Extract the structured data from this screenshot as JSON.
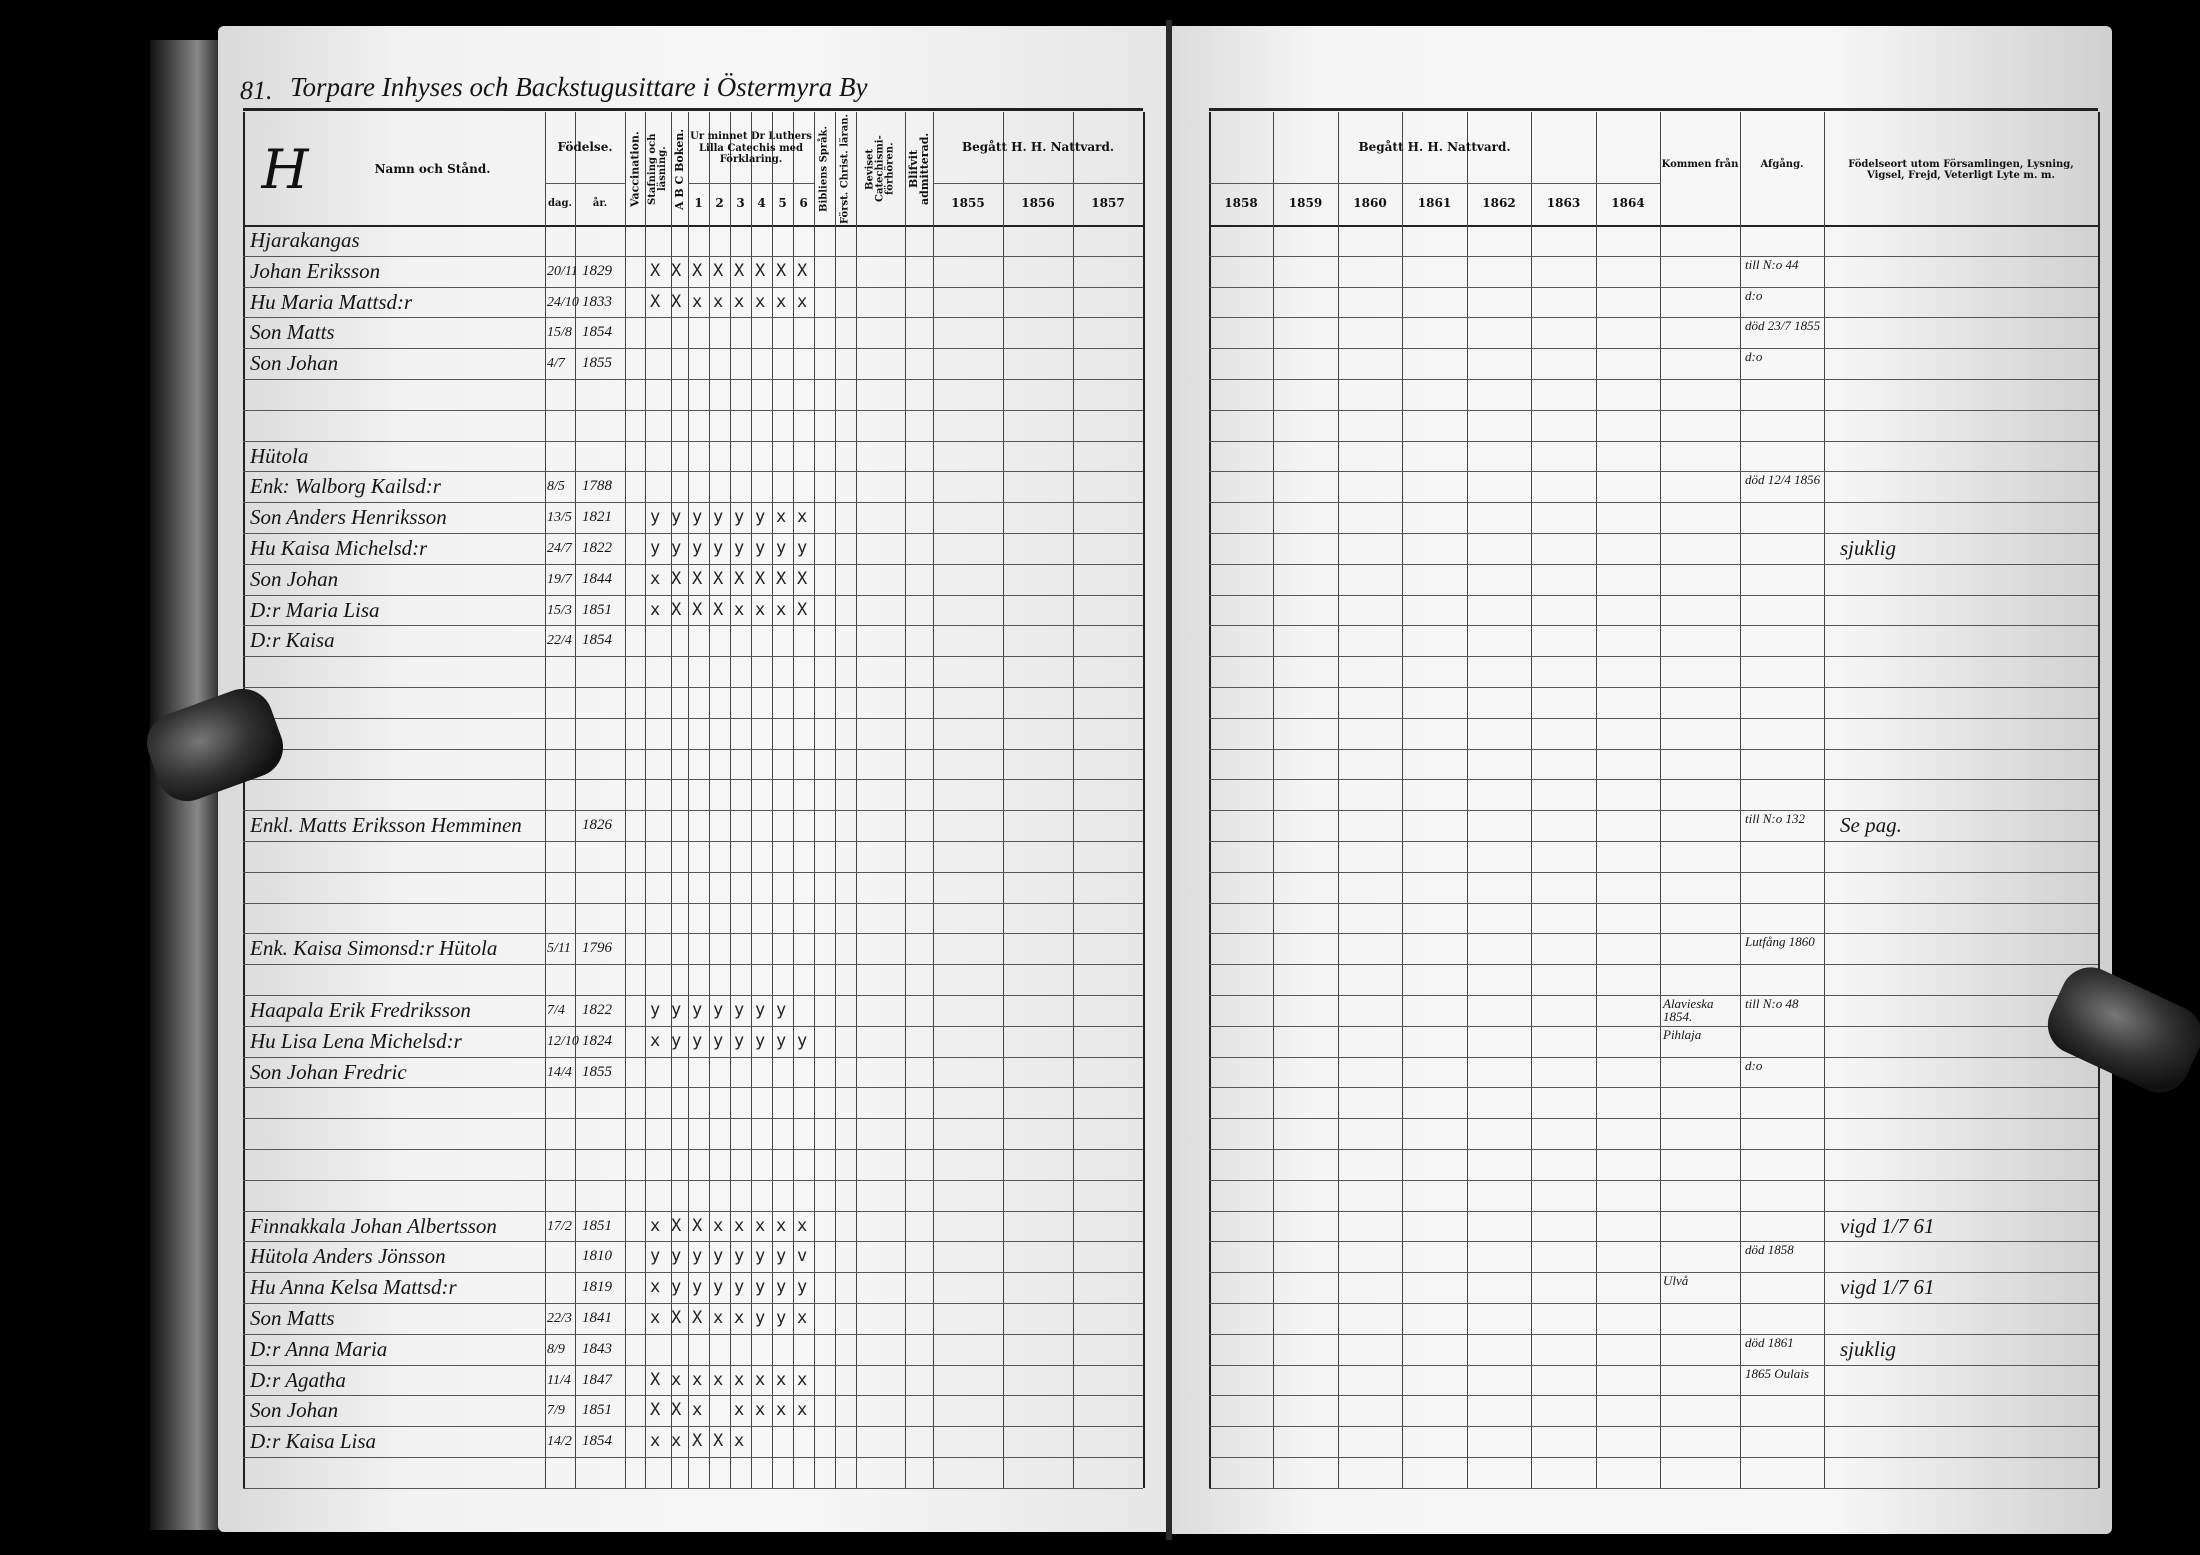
{
  "page_number": "81.",
  "page_heading": "Torpare Inhyses och Backstugusittare i Östermyra By",
  "left_header": {
    "letter": "H",
    "name_col": "Namn och Stånd.",
    "birth": "Födelse.",
    "birth_day": "dag.",
    "birth_year": "år.",
    "vaccination": "Vaccination.",
    "spelling": "Stafning och läsning.",
    "abc": "A B C Boken.",
    "catechism": "Ur minnet Dr Luthers Lilla Catechis med Förklaring.",
    "catechism_parts": [
      "1",
      "2",
      "3",
      "4",
      "5",
      "6"
    ],
    "bible": "Bibliens Språk.",
    "christ": "Först. Christ. läran.",
    "proof": "Beviset Catechismi-förhören.",
    "admitted": "Blifvit admitterad.",
    "communion": "Begått H. H. Nattvard.",
    "years": [
      "1855",
      "1856",
      "1857"
    ]
  },
  "right_header": {
    "communion": "Begått H. H. Nattvard.",
    "years": [
      "1858",
      "1859",
      "1860",
      "1861",
      "1862",
      "1863",
      "1864"
    ],
    "came_from": "Kommen från",
    "departure": "Afgång.",
    "remarks": "Födelseort utom Församlingen, Lysning, Vigsel, Frejd, Veterligt Lyte m. m."
  },
  "entries": [
    {
      "row": 0,
      "name": "Hjarakangas"
    },
    {
      "row": 1,
      "name": "Johan Eriksson",
      "day": "20/11",
      "year": "1829",
      "marks": "XXXXXXXX",
      "departure": "till N:o 44"
    },
    {
      "row": 2,
      "name": "Hu Maria Mattsd:r",
      "day": "24/10",
      "year": "1833",
      "marks": "XXxxxxxx",
      "departure": "d:o"
    },
    {
      "row": 3,
      "name": "Son Matts",
      "day": "15/8",
      "year": "1854",
      "departure": "död 23/7 1855"
    },
    {
      "row": 4,
      "name": "Son Johan",
      "day": "4/7",
      "year": "1855",
      "departure": "d:o"
    },
    {
      "row": 7,
      "name": "Hütola"
    },
    {
      "row": 8,
      "name": "Enk: Walborg Kailsd:r",
      "day": "8/5",
      "year": "1788",
      "departure": "död 12/4 1856"
    },
    {
      "row": 9,
      "name": "Son Anders Henriksson",
      "day": "13/5",
      "year": "1821",
      "marks": "yyyyyyxx"
    },
    {
      "row": 10,
      "name": "Hu Kaisa Michelsd:r",
      "day": "24/7",
      "year": "1822",
      "marks": "yyyyyyyy",
      "remarks": "sjuklig"
    },
    {
      "row": 11,
      "name": "Son Johan",
      "day": "19/7",
      "year": "1844",
      "marks": "xXXXXXXX"
    },
    {
      "row": 12,
      "name": "D:r Maria Lisa",
      "day": "15/3",
      "year": "1851",
      "marks": "xXXXxxxX"
    },
    {
      "row": 13,
      "name": "D:r Kaisa",
      "day": "22/4",
      "year": "1854"
    },
    {
      "row": 19,
      "name": "Enkl. Matts Eriksson Hemminen",
      "year": "1826",
      "departure": "till N:o 132",
      "remarks": "Se pag."
    },
    {
      "row": 23,
      "name": "Enk. Kaisa Simonsd:r Hütola",
      "day": "5/11",
      "year": "1796",
      "departure": "Lutfång 1860"
    },
    {
      "row": 25,
      "name": "Haapala Erik Fredriksson",
      "day": "7/4",
      "year": "1822",
      "marks": "yyyyyyy",
      "came_from": "Alavieska 1854.",
      "departure": "till N:o 48"
    },
    {
      "row": 26,
      "name": "Hu Lisa Lena Michelsd:r",
      "day": "12/10",
      "year": "1824",
      "marks": "xyyyyyyy",
      "came_from": "Pihlaja"
    },
    {
      "row": 27,
      "name": "Son Johan Fredric",
      "day": "14/4",
      "year": "1855",
      "departure": "d:o"
    },
    {
      "row": 32,
      "name": "Finnakkala Johan Albertsson",
      "day": "17/2",
      "year": "1851",
      "marks": "xXXxxxxx",
      "remarks": "vigd 1/7 61"
    },
    {
      "row": 33,
      "name": "Hütola Anders Jönsson",
      "year": "1810",
      "marks": "yyyyyyyv",
      "departure": "död 1858"
    },
    {
      "row": 34,
      "name": "Hu Anna Kelsa Mattsd:r",
      "year": "1819",
      "marks": "xyyyyyyy",
      "came_from": "Ulvå",
      "remarks": "vigd 1/7 61"
    },
    {
      "row": 35,
      "name": "Son Matts",
      "day": "22/3",
      "year": "1841",
      "marks": "xXXxxyyx"
    },
    {
      "row": 36,
      "name": "D:r Anna Maria",
      "day": "8/9",
      "year": "1843",
      "departure": "död 1861",
      "remarks": "sjuklig"
    },
    {
      "row": 37,
      "name": "D:r Agatha",
      "day": "11/4",
      "year": "1847",
      "marks": "Xxxxxxxx",
      "departure": "1865 Oulais"
    },
    {
      "row": 38,
      "name": "Son Johan",
      "day": "7/9",
      "year": "1851",
      "marks": "XXx xxxx"
    },
    {
      "row": 39,
      "name": "D:r Kaisa Lisa",
      "day": "14/2",
      "year": "1854",
      "marks": "xxXXx"
    }
  ]
}
